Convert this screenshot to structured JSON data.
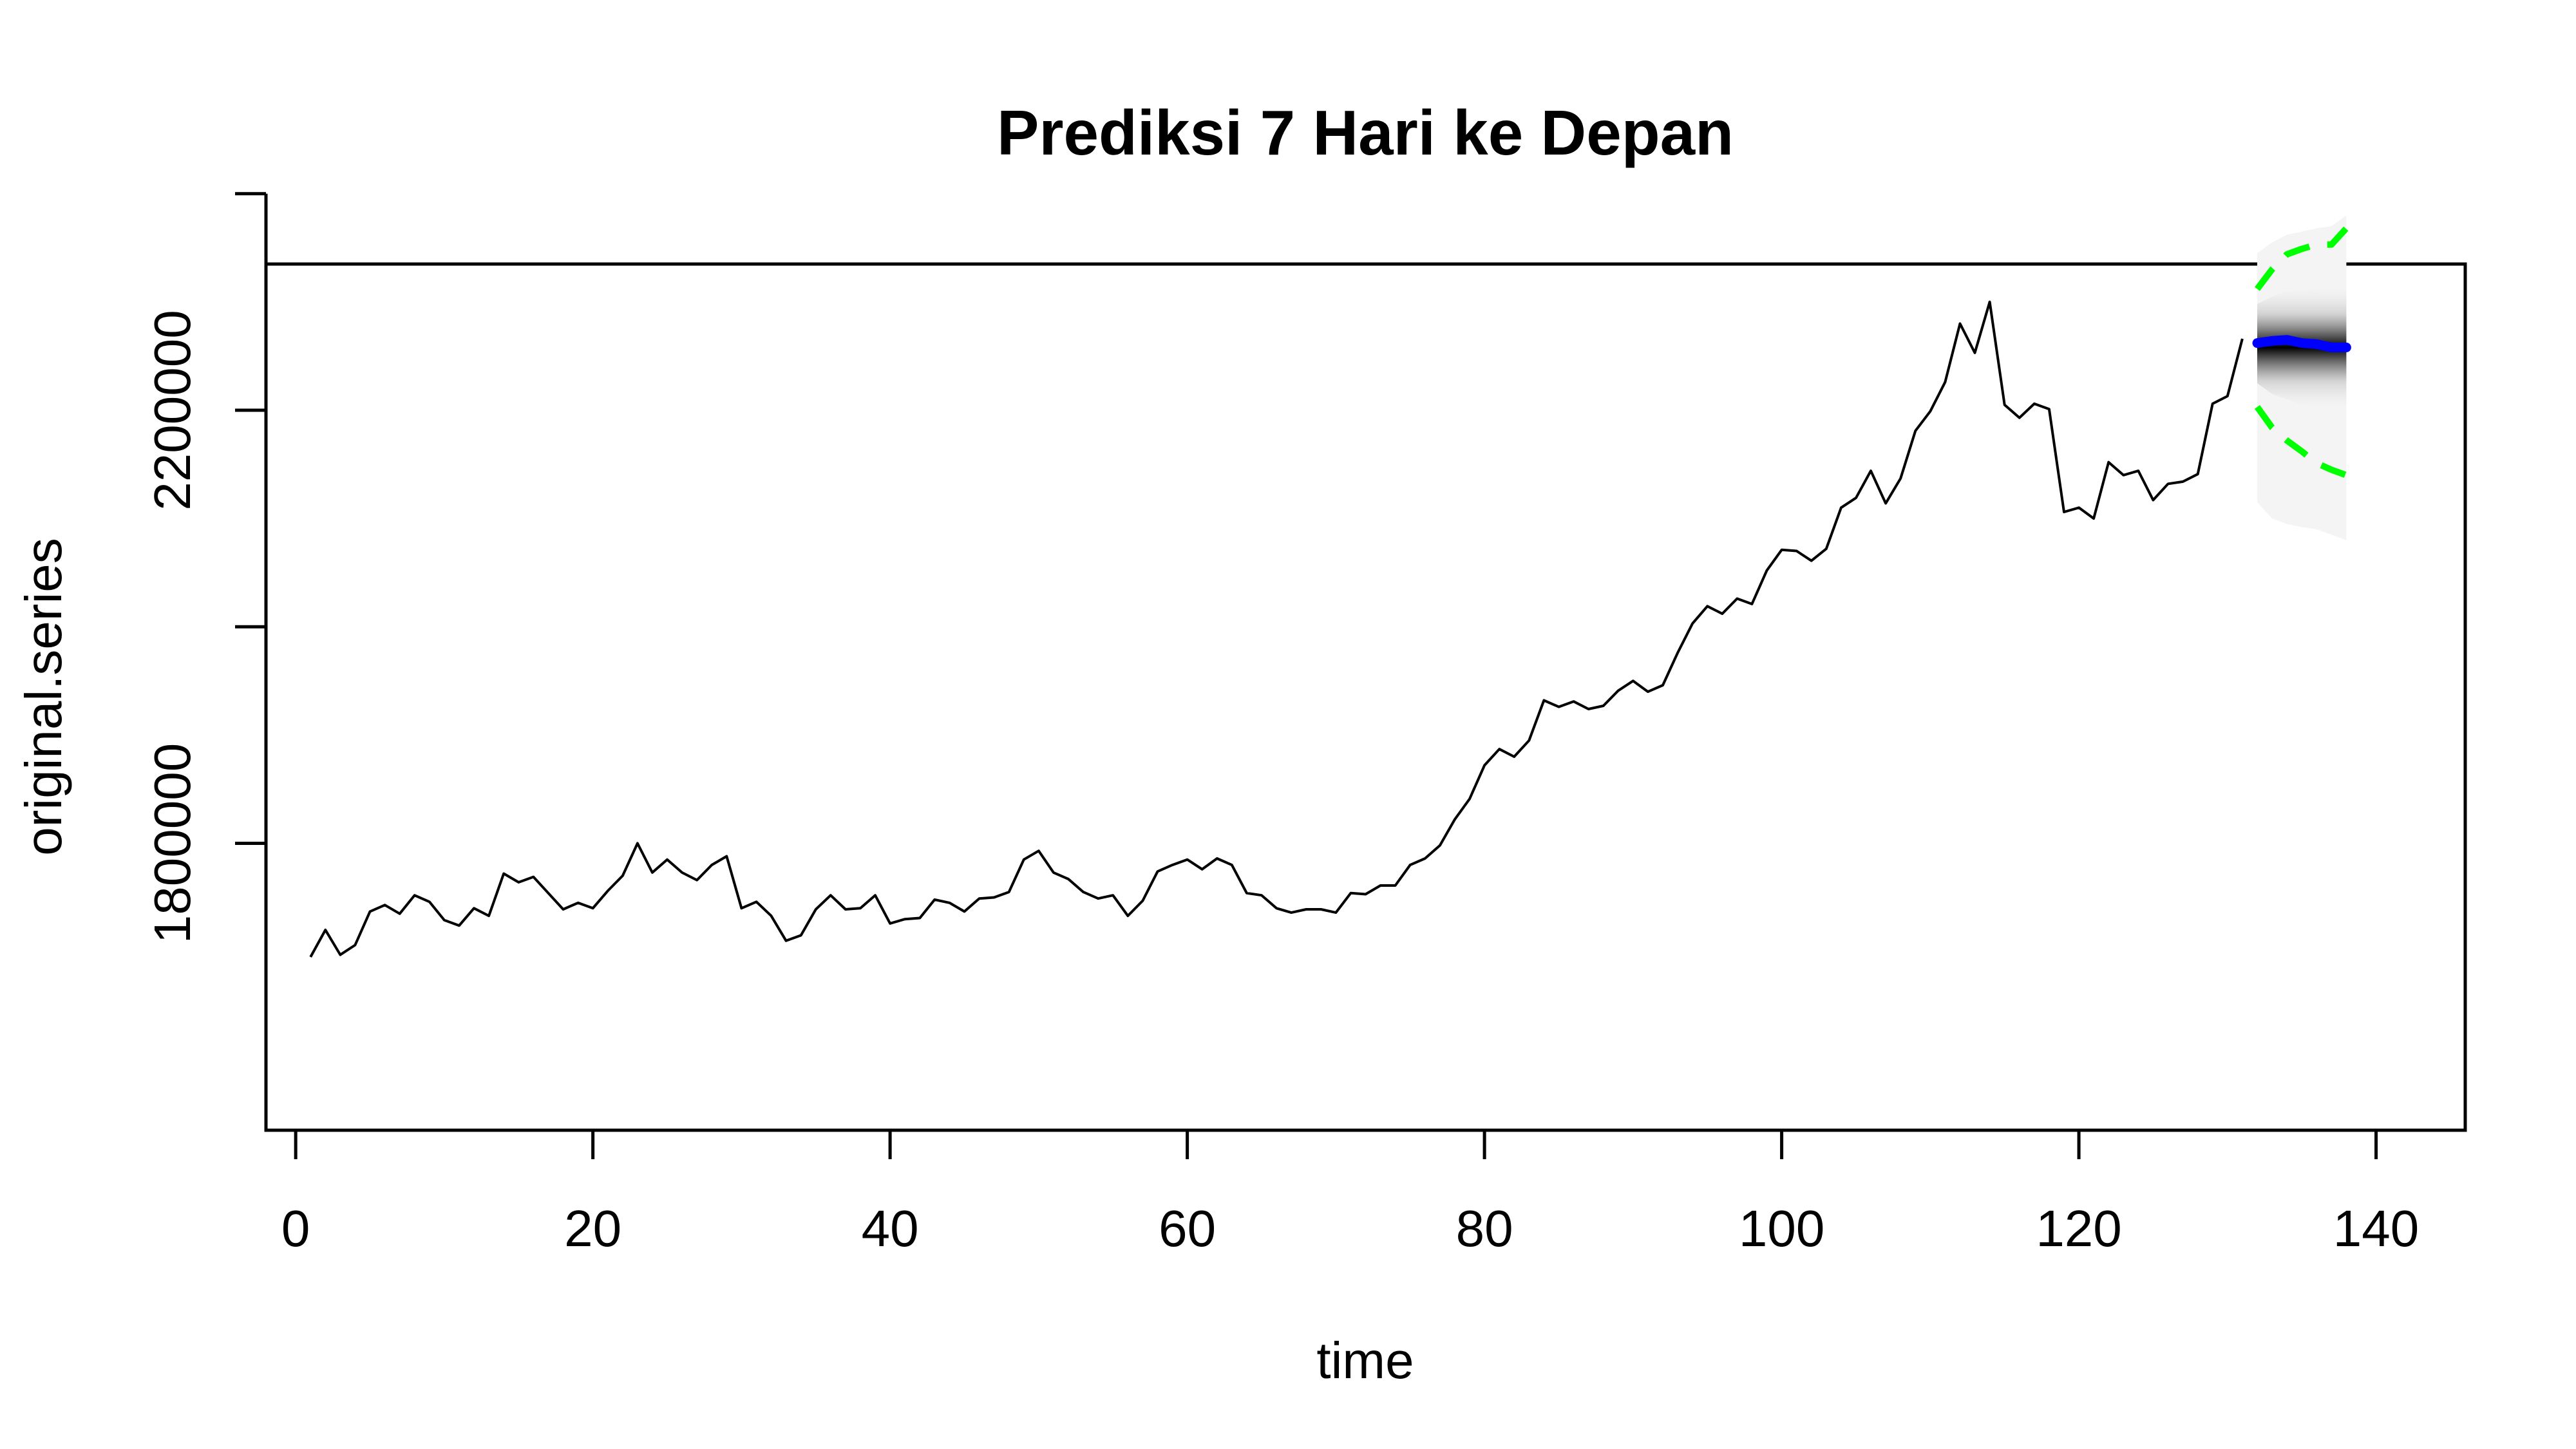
{
  "chart_data": {
    "type": "line",
    "title": "Prediksi 7 Hari ke Depan",
    "xlabel": "time",
    "ylabel": "original.series",
    "xlim": [
      -2,
      146
    ],
    "ylim": [
      1535000,
      2335000
    ],
    "x_ticks": [
      0,
      20,
      40,
      60,
      80,
      100,
      120,
      140
    ],
    "x_tick_labels": [
      "0",
      "20",
      "40",
      "60",
      "80",
      "100",
      "120",
      "140"
    ],
    "y_ticks": [
      1800000,
      2000000,
      2200000,
      2400000
    ],
    "y_tick_labels": [
      "1800000",
      "",
      "2200000",
      ""
    ],
    "grid": false,
    "series": [
      {
        "role": "observed",
        "color": "#000000",
        "x": [
          1,
          2,
          3,
          4,
          5,
          6,
          7,
          8,
          9,
          10,
          11,
          12,
          13,
          14,
          15,
          16,
          17,
          18,
          19,
          20,
          21,
          22,
          23,
          24,
          25,
          26,
          27,
          28,
          29,
          30,
          31,
          32,
          33,
          34,
          35,
          36,
          37,
          38,
          39,
          40,
          41,
          42,
          43,
          44,
          45,
          46,
          47,
          48,
          49,
          50,
          51,
          52,
          53,
          54,
          55,
          56,
          57,
          58,
          59,
          60,
          61,
          62,
          63,
          64,
          65,
          66,
          67,
          68,
          69,
          70,
          71,
          72,
          73,
          74,
          75,
          76,
          77,
          78,
          79,
          80,
          81,
          82,
          83,
          84,
          85,
          86,
          87,
          88,
          89,
          90,
          91,
          92,
          93,
          94,
          95,
          96,
          97,
          98,
          99,
          100,
          101,
          102,
          103,
          104,
          105,
          106,
          107,
          108,
          109,
          110,
          111,
          112,
          113,
          114,
          115,
          116,
          117,
          118,
          119,
          120,
          121,
          122,
          123,
          124,
          125,
          126,
          127,
          128,
          129,
          130,
          131
        ],
        "values": [
          1695000,
          1720000,
          1697000,
          1706000,
          1737000,
          1743000,
          1735000,
          1752000,
          1746000,
          1729000,
          1724000,
          1740000,
          1733000,
          1772000,
          1764000,
          1769000,
          1754000,
          1739000,
          1745000,
          1740000,
          1756000,
          1770000,
          1800000,
          1773000,
          1785000,
          1773000,
          1766000,
          1780000,
          1788000,
          1740000,
          1746000,
          1733000,
          1710000,
          1715000,
          1739000,
          1752000,
          1739000,
          1740000,
          1752000,
          1726000,
          1730000,
          1731000,
          1748000,
          1745000,
          1737000,
          1749000,
          1750000,
          1755000,
          1785000,
          1793000,
          1773000,
          1767000,
          1755000,
          1749000,
          1752000,
          1733000,
          1747000,
          1774000,
          1780000,
          1785000,
          1776000,
          1786000,
          1780000,
          1754000,
          1752000,
          1740000,
          1736000,
          1739000,
          1739000,
          1736000,
          1754000,
          1753000,
          1761000,
          1761000,
          1780000,
          1786000,
          1798000,
          1822000,
          1841000,
          1872000,
          1887000,
          1880000,
          1895000,
          1932000,
          1926000,
          1931000,
          1924000,
          1927000,
          1941000,
          1950000,
          1940000,
          1946000,
          1976000,
          2003000,
          2019000,
          2012000,
          2026000,
          2021000,
          2052000,
          2071000,
          2070000,
          2061000,
          2072000,
          2110000,
          2119000,
          2144000,
          2114000,
          2137000,
          2181000,
          2199000,
          2226000,
          2280000,
          2253000,
          2300000,
          2205000,
          2193000,
          2206000,
          2201000,
          2106000,
          2110000,
          2100000,
          2152000,
          2140000,
          2144000,
          2117000,
          2132000,
          2134000,
          2141000,
          2206000,
          2213000,
          2266000
        ]
      },
      {
        "role": "forecast",
        "color": "#0000ff",
        "x": [
          132,
          133,
          134,
          135,
          136,
          137,
          138
        ],
        "values": [
          2262000,
          2264000,
          2265000,
          2262000,
          2261000,
          2258000,
          2258000
        ]
      },
      {
        "role": "upper-bound",
        "color": "#00ff00",
        "x": [
          132,
          133,
          134,
          135,
          136,
          137,
          138
        ],
        "values": [
          2312000,
          2330000,
          2344000,
          2349000,
          2353000,
          2353000,
          2368000
        ]
      },
      {
        "role": "lower-bound",
        "color": "#00ff00",
        "x": [
          132,
          133,
          134,
          135,
          136,
          137,
          138
        ],
        "values": [
          2203000,
          2184000,
          2172000,
          2162000,
          2151000,
          2145000,
          2140000
        ]
      }
    ],
    "fan_band": {
      "x": [
        132,
        133,
        134,
        135,
        136,
        137,
        138
      ],
      "inner_upper": [
        2298000,
        2305000,
        2310000,
        2310000,
        2312000,
        2313000,
        2320000
      ],
      "inner_lower": [
        2225000,
        2215000,
        2210000,
        2205000,
        2202000,
        2198000,
        2196000
      ],
      "outer_upper": [
        2345000,
        2355000,
        2362000,
        2365000,
        2368000,
        2370000,
        2380000
      ],
      "outer_lower": [
        2115000,
        2100000,
        2095000,
        2092000,
        2090000,
        2085000,
        2080000
      ]
    }
  }
}
